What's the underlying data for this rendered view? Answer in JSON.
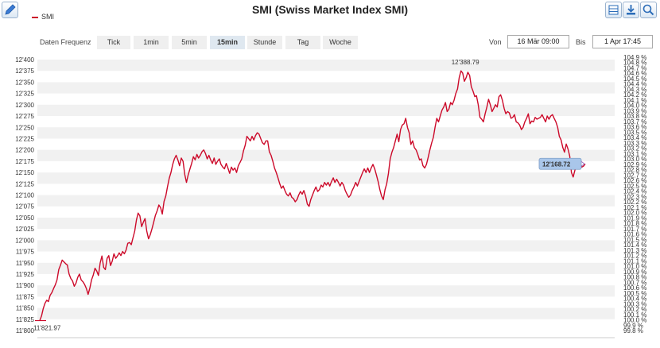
{
  "header": {
    "title": "SMI (Swiss Market Index SMI)",
    "icons": [
      "pencil-icon",
      "table-icon",
      "download-icon",
      "zoom-icon"
    ]
  },
  "legend": {
    "label": "SMI"
  },
  "controls": {
    "frequency_label": "Daten Frequenz",
    "frequencies": [
      "Tick",
      "1min",
      "5min",
      "15min",
      "Stunde",
      "Tag",
      "Woche"
    ],
    "active_frequency": "15min",
    "from_label": "Von",
    "from_value": "16 Mär 09:00",
    "to_label": "Bis",
    "to_value": "1 Apr 17:45"
  },
  "colors": {
    "line": "#cc0a2a",
    "band": "#f1f1f1",
    "high_label": "#2a8fc9",
    "low_label": "#b5192f",
    "badge_bg": "#a9c6ea",
    "badge_text": "#6a2ba8"
  },
  "chart_data": {
    "type": "line",
    "title": "SMI (Swiss Market Index SMI)",
    "series": [
      {
        "name": "SMI",
        "values": [
          11822,
          11832,
          11848,
          11860,
          11867,
          11864,
          11878,
          11884,
          11893,
          11901,
          11912,
          11935,
          11945,
          11956,
          11952,
          11948,
          11945,
          11925,
          11915,
          11910,
          11898,
          11905,
          11918,
          11925,
          11912,
          11908,
          11902,
          11893,
          11880,
          11894,
          11912,
          11923,
          11938,
          11932,
          11922,
          11950,
          11965,
          11940,
          11935,
          11960,
          11966,
          11944,
          11954,
          11970,
          11960,
          11965,
          11972,
          11966,
          11975,
          11970,
          11978,
          11993,
          11995,
          11990,
          12005,
          12020,
          12045,
          12060,
          12054,
          12030,
          12040,
          12048,
          12020,
          12003,
          12012,
          12025,
          12040,
          12055,
          12065,
          12078,
          12072,
          12058,
          12086,
          12098,
          12118,
          12137,
          12150,
          12168,
          12180,
          12188,
          12178,
          12165,
          12182,
          12175,
          12145,
          12128,
          12145,
          12158,
          12170,
          12185,
          12178,
          12190,
          12182,
          12188,
          12196,
          12200,
          12192,
          12180,
          12188,
          12178,
          12170,
          12182,
          12168,
          12175,
          12180,
          12168,
          12162,
          12158,
          12170,
          12160,
          12148,
          12162,
          12155,
          12160,
          12150,
          12165,
          12172,
          12180,
          12198,
          12210,
          12230,
          12225,
          12220,
          12230,
          12222,
          12232,
          12238,
          12235,
          12225,
          12216,
          12212,
          12220,
          12220,
          12196,
          12188,
          12175,
          12160,
          12150,
          12138,
          12125,
          12115,
          12120,
          12110,
          12102,
          12098,
          12105,
          12095,
          12092,
          12085,
          12090,
          12100,
          12108,
          12102,
          12110,
          12098,
          12080,
          12075,
          12090,
          12100,
          12110,
          12118,
          12108,
          12112,
          12122,
          12118,
          12128,
          12122,
          12128,
          12120,
          12130,
          12138,
          12128,
          12135,
          12128,
          12120,
          12128,
          12122,
          12110,
          12102,
          12095,
          12100,
          12110,
          12118,
          12128,
          12120,
          12130,
          12140,
          12150,
          12158,
          12150,
          12160,
          12150,
          12160,
          12168,
          12158,
          12145,
          12130,
          12112,
          12098,
          12090,
          12112,
          12125,
          12148,
          12180,
          12195,
          12205,
          12220,
          12235,
          12218,
          12245,
          12255,
          12258,
          12270,
          12250,
          12238,
          12212,
          12220,
          12205,
          12200,
          12190,
          12178,
          12180,
          12165,
          12160,
          12168,
          12183,
          12200,
          12215,
          12228,
          12250,
          12270,
          12262,
          12275,
          12288,
          12295,
          12305,
          12285,
          12290,
          12305,
          12300,
          12310,
          12325,
          12335,
          12360,
          12375,
          12370,
          12352,
          12360,
          12372,
          12365,
          12340,
          12330,
          12318,
          12320,
          12300,
          12272,
          12268,
          12262,
          12280,
          12295,
          12312,
          12300,
          12285,
          12292,
          12300,
          12295,
          12318,
          12322,
          12310,
          12292,
          12280,
          12285,
          12282,
          12270,
          12272,
          12278,
          12262,
          12260,
          12255,
          12245,
          12250,
          12262,
          12270,
          12280,
          12258,
          12264,
          12262,
          12272,
          12268,
          12270,
          12272,
          12278,
          12270,
          12262,
          12275,
          12268,
          12275,
          12278,
          12270,
          12262,
          12250,
          12230,
          12222,
          12205,
          12195,
          12213,
          12202,
          12186,
          12150,
          12140,
          12155,
          12168,
          12174,
          12170,
          12162,
          12164,
          12169
        ]
      }
    ],
    "yaxis_left": {
      "min": 11800,
      "max": 12400,
      "step": 25,
      "ticks": [
        "11'800",
        "11'825",
        "11'850",
        "11'875",
        "11'900",
        "11'925",
        "11'950",
        "11'975",
        "12'000",
        "12'025",
        "12'050",
        "12'075",
        "12'100",
        "12'125",
        "12'150",
        "12'175",
        "12'200",
        "12'225",
        "12'250",
        "12'275",
        "12'300",
        "12'325",
        "12'350",
        "12'375",
        "12'400"
      ]
    },
    "yaxis_right": {
      "ticks": [
        "99.8 %",
        "99.9 %",
        "100.0 %",
        "100.1 %",
        "100.2 %",
        "100.3 %",
        "100.4 %",
        "100.5 %",
        "100.6 %",
        "100.7 %",
        "100.8 %",
        "100.9 %",
        "101.0 %",
        "101.1 %",
        "101.2 %",
        "101.3 %",
        "101.4 %",
        "101.5 %",
        "101.6 %",
        "101.7 %",
        "101.8 %",
        "101.9 %",
        "102.0 %",
        "102.1 %",
        "102.2 %",
        "102.3 %",
        "102.4 %",
        "102.5 %",
        "102.6 %",
        "102.7 %",
        "102.8 %",
        "102.9 %",
        "103.0 %",
        "103.1 %",
        "103.2 %",
        "103.3 %",
        "103.4 %",
        "103.5 %",
        "103.6 %",
        "103.7 %",
        "103.8 %",
        "103.9 %",
        "104.0 %",
        "104.1 %",
        "104.2 %",
        "104.3 %",
        "104.4 %",
        "104.5 %",
        "104.6 %",
        "104.7 %",
        "104.8 %",
        "104.9 %"
      ]
    },
    "annotations": {
      "high": "12'388.79",
      "low": "11'821.97",
      "last": "12'168.72"
    }
  }
}
